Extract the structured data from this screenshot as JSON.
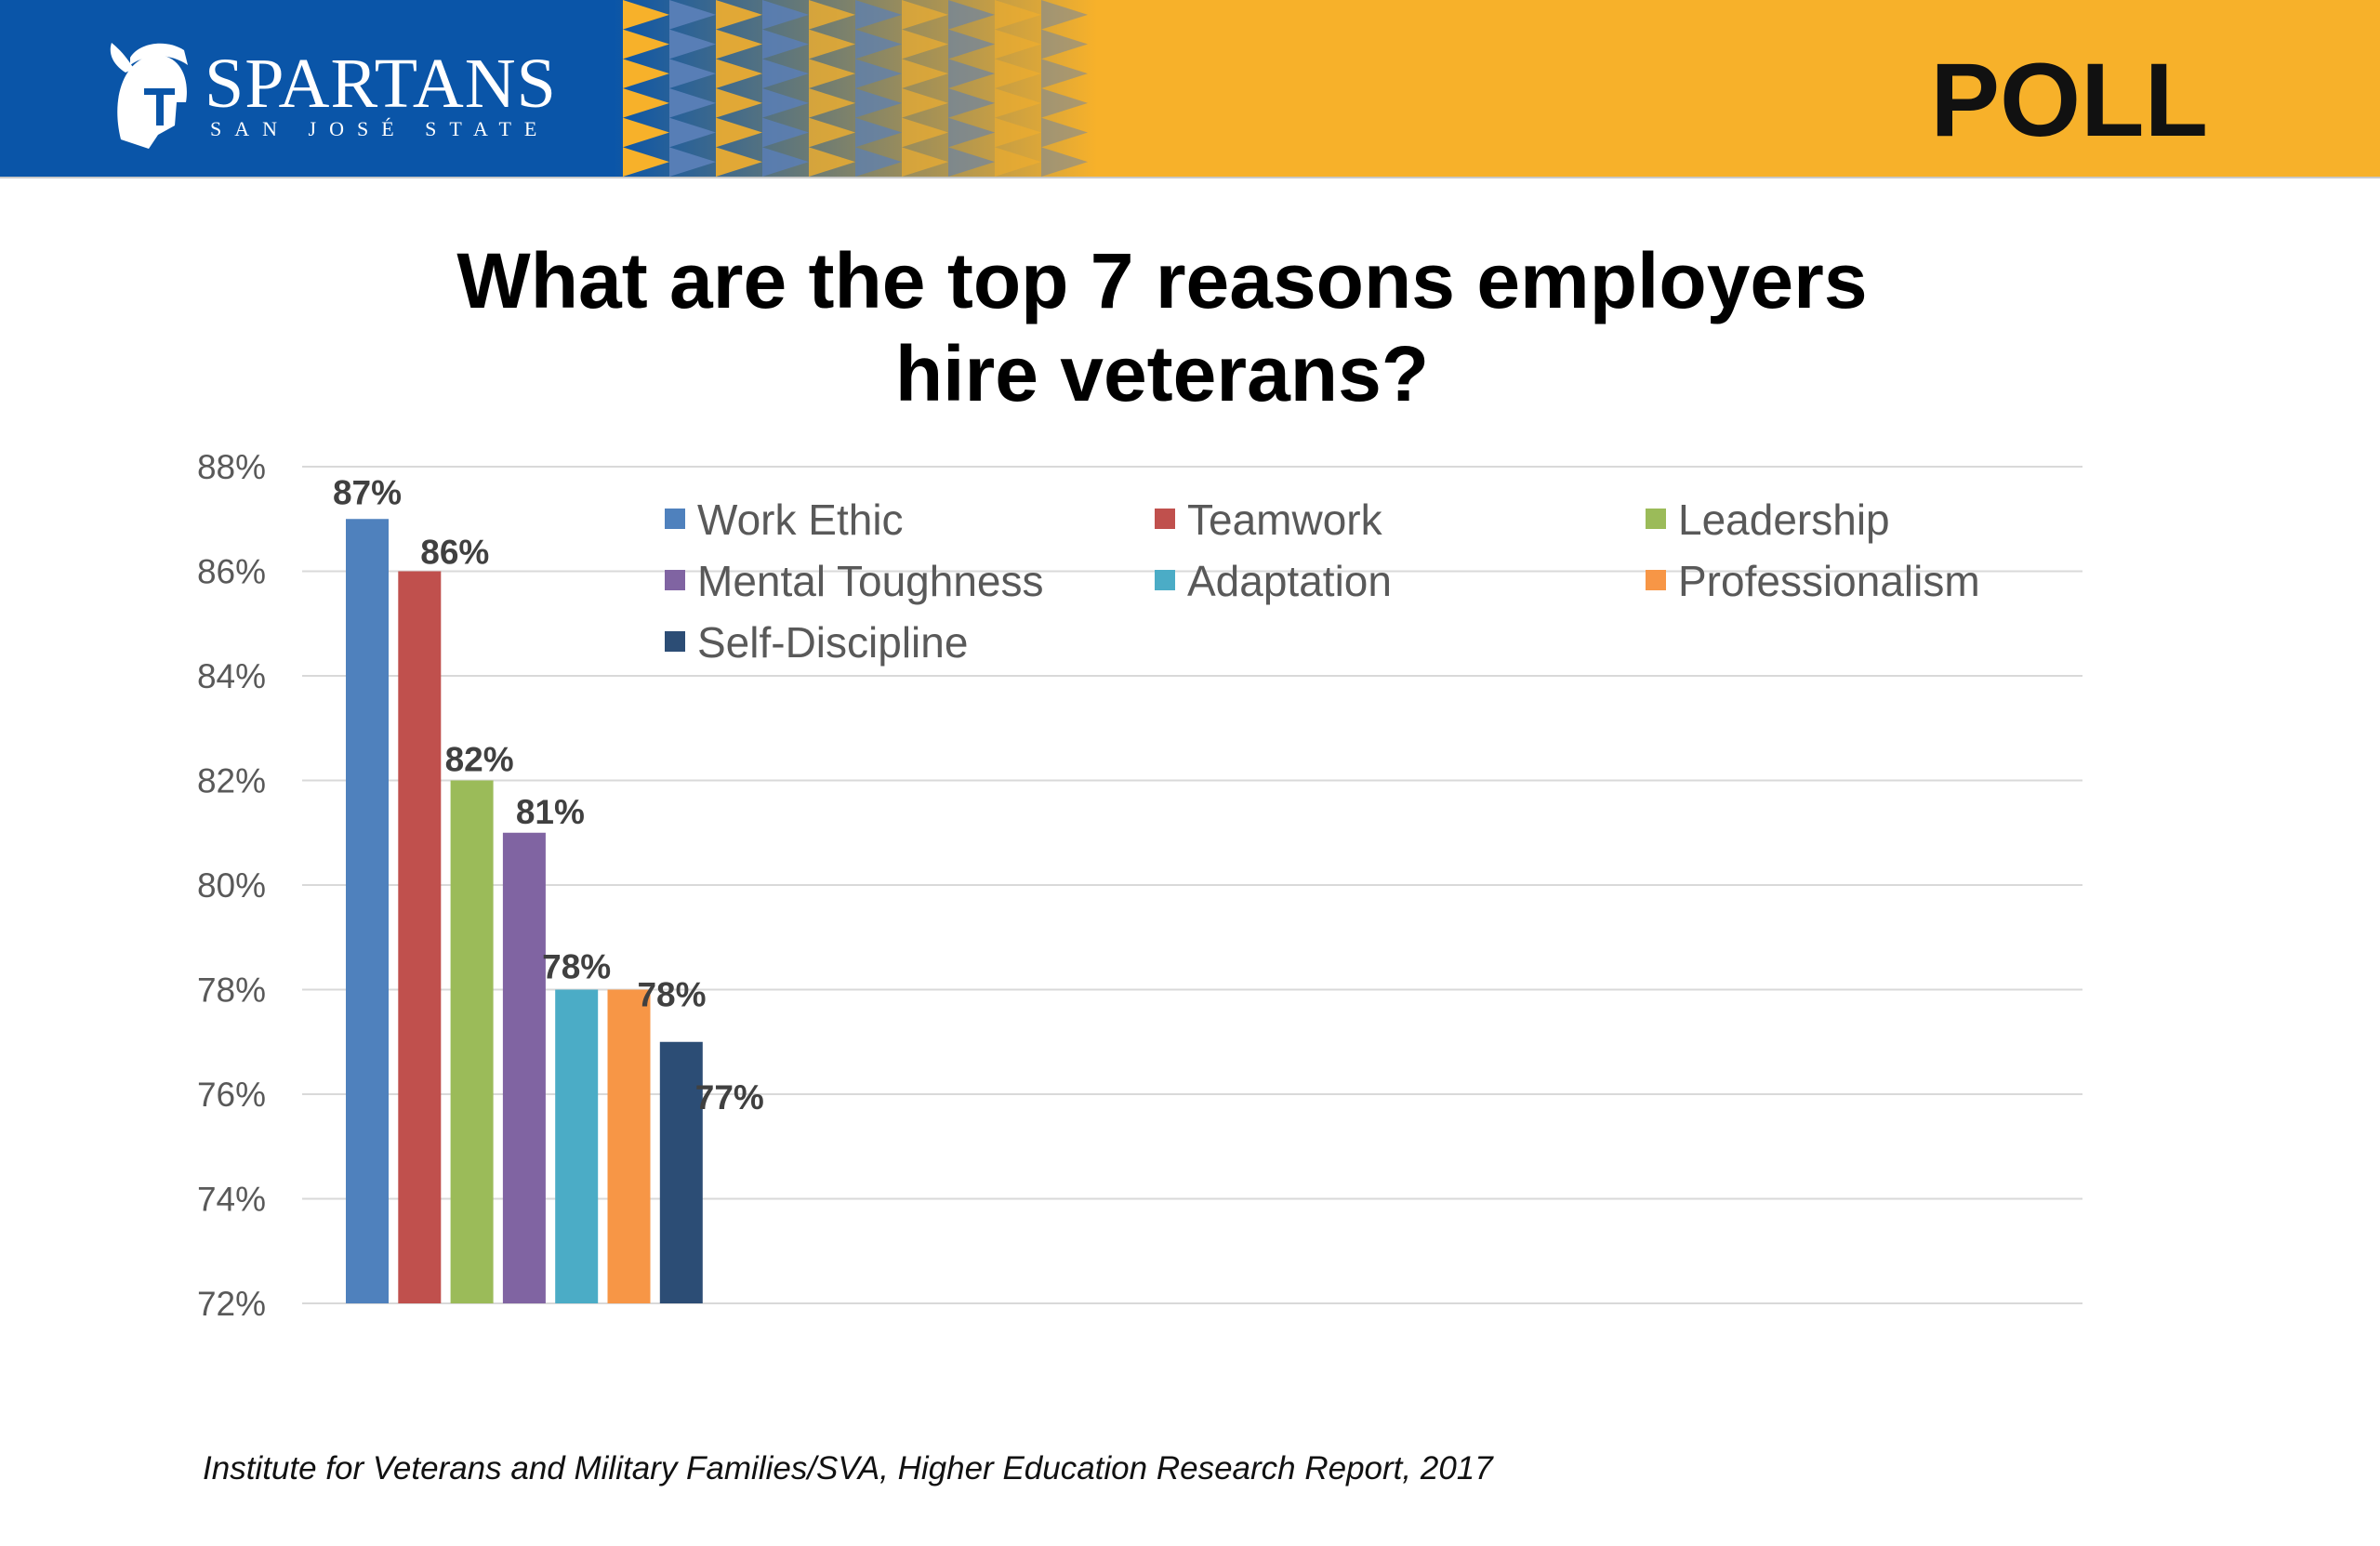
{
  "banner": {
    "logo_word": "SPARTANS",
    "logo_sub": "SAN JOSÉ STATE",
    "poll_label": "POLL",
    "colors": {
      "blue": "#0a55a8",
      "gold": "#f7b12a"
    }
  },
  "footer": {
    "source": "Institute for Veterans and Military Families/SVA, Higher Education Research Report, 2017"
  },
  "chart_data": {
    "type": "bar",
    "title_lines": [
      "What are the top 7 reasons employers",
      "hire veterans?"
    ],
    "xlabel": "",
    "ylabel": "",
    "ylim": [
      72,
      88
    ],
    "yticks": [
      72,
      74,
      76,
      78,
      80,
      82,
      84,
      86,
      88
    ],
    "ytick_labels": [
      "72%",
      "74%",
      "76%",
      "78%",
      "80%",
      "82%",
      "84%",
      "86%",
      "88%"
    ],
    "grid": true,
    "legend_position": "top-right",
    "series": [
      {
        "name": "Work Ethic",
        "value": 87,
        "label": "87%",
        "color": "#4f81bd"
      },
      {
        "name": "Teamwork",
        "value": 86,
        "label": "86%",
        "color": "#c0504d"
      },
      {
        "name": "Leadership",
        "value": 82,
        "label": "82%",
        "color": "#9bbb59"
      },
      {
        "name": "Mental Toughness",
        "value": 81,
        "label": "81%",
        "color": "#8064a2"
      },
      {
        "name": "Adaptation",
        "value": 78,
        "label": "78%",
        "color": "#4bacc6"
      },
      {
        "name": "Professionalism",
        "value": 78,
        "label": "78%",
        "color": "#f79646"
      },
      {
        "name": "Self-Discipline",
        "value": 77,
        "label": "77%",
        "color": "#2c4d75"
      }
    ]
  }
}
